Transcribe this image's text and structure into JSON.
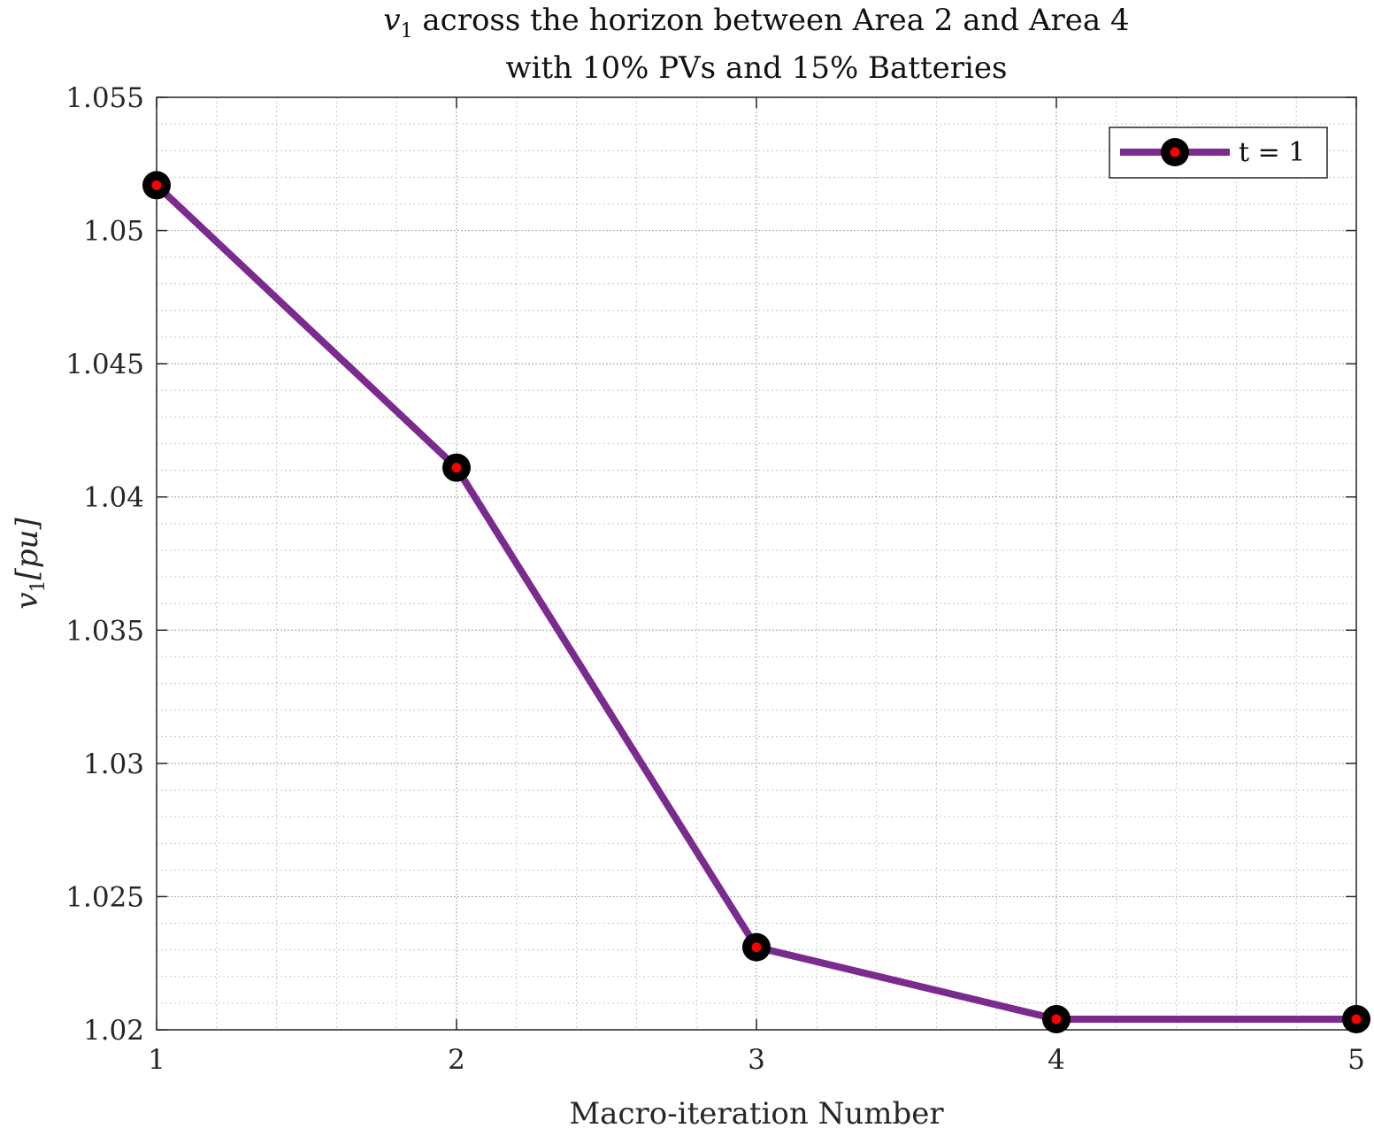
{
  "chart_data": {
    "type": "line",
    "title_line1_var": "v",
    "title_line1_sub": "1",
    "title_line1_rest": " across the horizon between Area 2 and Area 4",
    "title_line2": "with 10% PVs and 15% Batteries",
    "xlabel": "Macro-iteration Number",
    "ylabel_var": "v",
    "ylabel_sub": "1",
    "ylabel_unit": "[pu]",
    "x": [
      1,
      2,
      3,
      4,
      5
    ],
    "xlim": [
      1,
      5
    ],
    "ylim": [
      1.02,
      1.055
    ],
    "xticks": [
      "1",
      "2",
      "3",
      "4",
      "5"
    ],
    "yticks": [
      "1.02",
      "1.025",
      "1.03",
      "1.035",
      "1.04",
      "1.045",
      "1.05",
      "1.055"
    ],
    "series": [
      {
        "name": "t = 1",
        "values": [
          1.0517,
          1.0411,
          1.0231,
          1.0204,
          1.0204
        ],
        "line_color": "#7b2a8e",
        "marker_edge_color": "#000000",
        "marker_face_color": "#ff0000"
      }
    ],
    "grid": true,
    "minor_grid": true,
    "legend_position": "top-right"
  }
}
